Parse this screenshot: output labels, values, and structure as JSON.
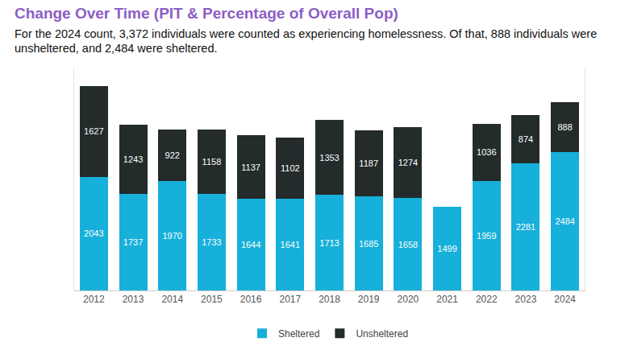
{
  "chart_data": {
    "type": "bar",
    "title": "Change Over Time (PIT & Percentage of Overall Pop)",
    "subtitle": "For the 2024 count, 3,372 individuals were counted as experiencing homelessness. Of that, 888 individuals were unsheltered, and 2,484 were sheltered.",
    "categories": [
      "2012",
      "2013",
      "2014",
      "2015",
      "2016",
      "2017",
      "2018",
      "2019",
      "2020",
      "2021",
      "2022",
      "2023",
      "2024"
    ],
    "series": [
      {
        "name": "Sheltered",
        "color": "#17b0da",
        "values": [
          2043,
          1737,
          1970,
          1733,
          1644,
          1641,
          1713,
          1685,
          1658,
          1499,
          1959,
          2281,
          2484
        ]
      },
      {
        "name": "Unsheltered",
        "color": "#232b2b",
        "values": [
          1627,
          1243,
          922,
          1158,
          1137,
          1102,
          1353,
          1187,
          1274,
          null,
          1036,
          874,
          888
        ]
      }
    ],
    "ylim": [
      0,
      4000
    ],
    "stacked": true,
    "data_labels": true,
    "legend": "bottom",
    "tick_labels": "x"
  }
}
